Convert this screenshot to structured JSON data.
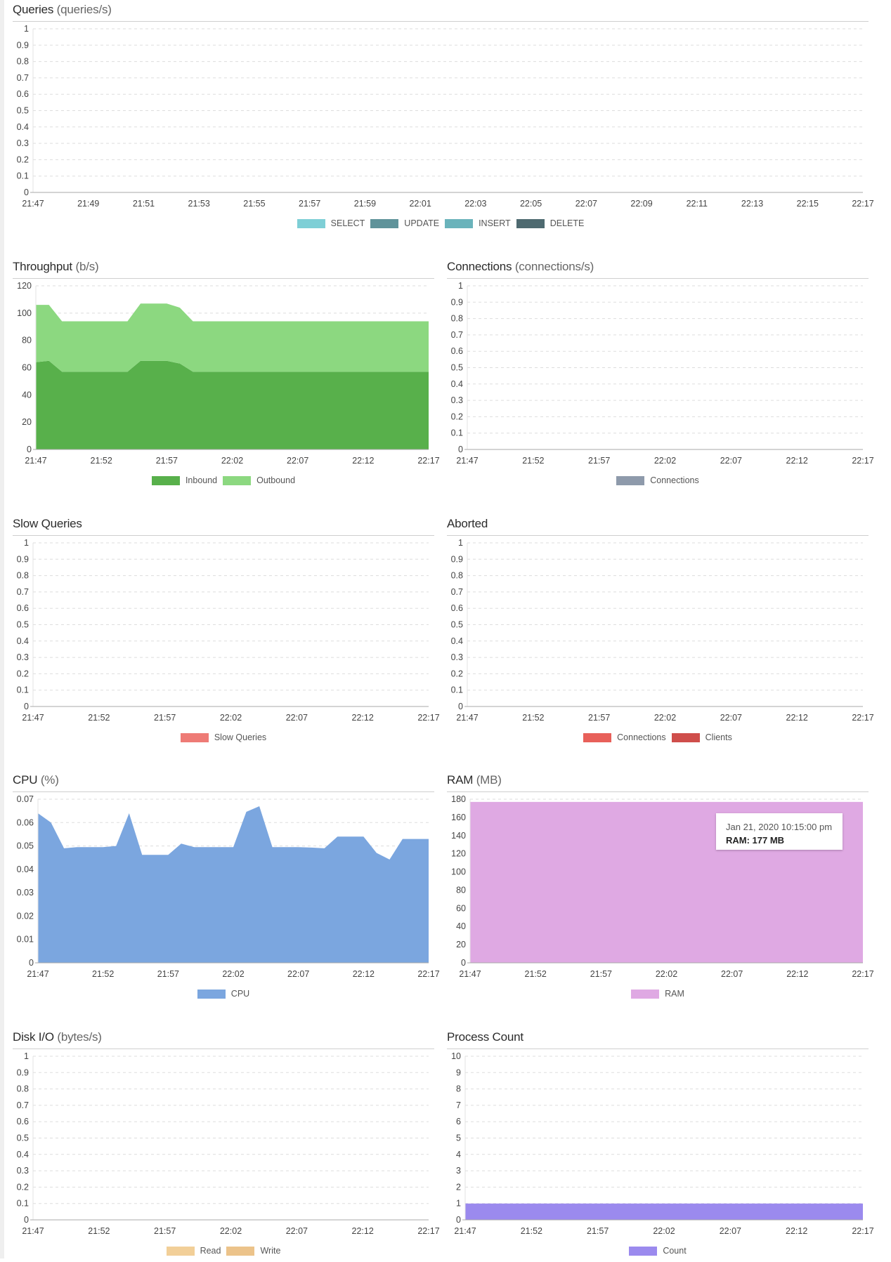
{
  "chart_data": [
    {
      "type": "area",
      "title": "Queries",
      "unit": "(queries/s)",
      "ylim": [
        0,
        1
      ],
      "yticks": [
        "0",
        "0.1",
        "0.2",
        "0.3",
        "0.4",
        "0.5",
        "0.6",
        "0.7",
        "0.8",
        "0.9",
        "1"
      ],
      "xticks": [
        "21:47",
        "21:49",
        "21:51",
        "21:53",
        "21:55",
        "21:57",
        "21:59",
        "22:01",
        "22:03",
        "22:05",
        "22:07",
        "22:09",
        "22:11",
        "22:13",
        "22:15",
        "22:17"
      ],
      "grid": true,
      "legend": "bottom",
      "series": [
        {
          "name": "SELECT",
          "color": "#7ecfd6",
          "values": []
        },
        {
          "name": "UPDATE",
          "color": "#5f939a",
          "values": []
        },
        {
          "name": "INSERT",
          "color": "#6ab3bb",
          "values": []
        },
        {
          "name": "DELETE",
          "color": "#4e6a70",
          "values": []
        }
      ]
    },
    {
      "type": "area",
      "stacked": true,
      "title": "Throughput",
      "unit": "(b/s)",
      "ylim": [
        0,
        120
      ],
      "yticks": [
        "0",
        "20",
        "40",
        "60",
        "80",
        "100",
        "120"
      ],
      "xticks": [
        "21:47",
        "21:52",
        "21:57",
        "22:02",
        "22:07",
        "22:12",
        "22:17"
      ],
      "grid": true,
      "legend": "bottom",
      "x": [
        "21:47",
        "21:48",
        "21:49",
        "21:50",
        "21:51",
        "21:52",
        "21:53",
        "21:54",
        "21:55",
        "21:56",
        "21:57",
        "21:58",
        "21:59",
        "22:00",
        "22:01",
        "22:02",
        "22:03",
        "22:04",
        "22:05",
        "22:06",
        "22:07",
        "22:08",
        "22:09",
        "22:10",
        "22:11",
        "22:12",
        "22:13",
        "22:14",
        "22:15",
        "22:16",
        "22:17"
      ],
      "series": [
        {
          "name": "Inbound",
          "color": "#58b04b",
          "values": [
            64,
            65,
            57,
            57,
            57,
            57,
            57,
            57,
            65,
            65,
            65,
            63,
            57,
            57,
            57,
            57,
            57,
            57,
            57,
            57,
            57,
            57,
            57,
            57,
            57,
            57,
            57,
            57,
            57,
            57,
            57
          ]
        },
        {
          "name": "Outbound",
          "color": "#8cd880",
          "values": [
            42,
            41,
            37,
            37,
            37,
            37,
            37,
            37,
            42,
            42,
            42,
            41,
            37,
            37,
            37,
            37,
            37,
            37,
            37,
            37,
            37,
            37,
            37,
            37,
            37,
            37,
            37,
            37,
            37,
            37,
            37
          ]
        }
      ]
    },
    {
      "type": "area",
      "title": "Connections",
      "unit": "(connections/s)",
      "ylim": [
        0,
        1
      ],
      "yticks": [
        "0",
        "0.1",
        "0.2",
        "0.3",
        "0.4",
        "0.5",
        "0.6",
        "0.7",
        "0.8",
        "0.9",
        "1"
      ],
      "xticks": [
        "21:47",
        "21:52",
        "21:57",
        "22:02",
        "22:07",
        "22:12",
        "22:17"
      ],
      "grid": true,
      "legend": "bottom",
      "series": [
        {
          "name": "Connections",
          "color": "#8e9aab",
          "values": []
        }
      ]
    },
    {
      "type": "area",
      "title": "Slow Queries",
      "unit": "",
      "ylim": [
        0,
        1
      ],
      "yticks": [
        "0",
        "0.1",
        "0.2",
        "0.3",
        "0.4",
        "0.5",
        "0.6",
        "0.7",
        "0.8",
        "0.9",
        "1"
      ],
      "xticks": [
        "21:47",
        "21:52",
        "21:57",
        "22:02",
        "22:07",
        "22:12",
        "22:17"
      ],
      "grid": true,
      "legend": "bottom",
      "series": [
        {
          "name": "Slow Queries",
          "color": "#ee7b76",
          "values": []
        }
      ]
    },
    {
      "type": "area",
      "title": "Aborted",
      "unit": "",
      "ylim": [
        0,
        1
      ],
      "yticks": [
        "0",
        "0.1",
        "0.2",
        "0.3",
        "0.4",
        "0.5",
        "0.6",
        "0.7",
        "0.8",
        "0.9",
        "1"
      ],
      "xticks": [
        "21:47",
        "21:52",
        "21:57",
        "22:02",
        "22:07",
        "22:12",
        "22:17"
      ],
      "grid": true,
      "legend": "bottom",
      "series": [
        {
          "name": "Connections",
          "color": "#e8605a",
          "values": []
        },
        {
          "name": "Clients",
          "color": "#cf4e4b",
          "values": []
        }
      ]
    },
    {
      "type": "area",
      "title": "CPU",
      "unit": "(%)",
      "ylim": [
        0,
        0.07
      ],
      "yticks": [
        "0",
        "0.01",
        "0.02",
        "0.03",
        "0.04",
        "0.05",
        "0.06",
        "0.07"
      ],
      "xticks": [
        "21:47",
        "21:52",
        "21:57",
        "22:02",
        "22:07",
        "22:12",
        "22:17"
      ],
      "grid": true,
      "legend": "bottom",
      "x": [
        "21:47",
        "21:48",
        "21:49",
        "21:50",
        "21:51",
        "21:52",
        "21:53",
        "21:54",
        "21:55",
        "21:56",
        "21:57",
        "21:58",
        "21:59",
        "22:00",
        "22:01",
        "22:02",
        "22:03",
        "22:04",
        "22:05",
        "22:06",
        "22:07",
        "22:08",
        "22:09",
        "22:10",
        "22:11",
        "22:12",
        "22:13",
        "22:14",
        "22:15",
        "22:16",
        "22:17"
      ],
      "series": [
        {
          "name": "CPU",
          "color": "#7ba6df",
          "values": [
            0.064,
            0.06,
            0.049,
            0.0495,
            0.0495,
            0.0495,
            0.05,
            0.064,
            0.0462,
            0.0462,
            0.0462,
            0.051,
            0.0495,
            0.0495,
            0.0495,
            0.0495,
            0.0646,
            0.067,
            0.0495,
            0.0495,
            0.0495,
            0.0493,
            0.049,
            0.054,
            0.054,
            0.054,
            0.047,
            0.0442,
            0.053,
            0.053,
            0.053
          ]
        }
      ]
    },
    {
      "type": "area",
      "title": "RAM",
      "unit": "(MB)",
      "ylim": [
        0,
        180
      ],
      "yticks": [
        "0",
        "20",
        "40",
        "60",
        "80",
        "100",
        "120",
        "140",
        "160",
        "180"
      ],
      "xticks": [
        "21:47",
        "21:52",
        "21:57",
        "22:02",
        "22:07",
        "22:12",
        "22:17"
      ],
      "grid": true,
      "legend": "bottom",
      "x": [
        "21:47",
        "22:17"
      ],
      "series": [
        {
          "name": "RAM",
          "color": "#dfa9e3",
          "values": [
            177,
            177
          ]
        }
      ],
      "tooltip": {
        "time": "Jan 21, 2020 10:15:00 pm",
        "value": "RAM: 177 MB"
      }
    },
    {
      "type": "area",
      "title": "Disk I/O",
      "unit": "(bytes/s)",
      "ylim": [
        0,
        1
      ],
      "yticks": [
        "0",
        "0.1",
        "0.2",
        "0.3",
        "0.4",
        "0.5",
        "0.6",
        "0.7",
        "0.8",
        "0.9",
        "1"
      ],
      "xticks": [
        "21:47",
        "21:52",
        "21:57",
        "22:02",
        "22:07",
        "22:12",
        "22:17"
      ],
      "grid": true,
      "legend": "bottom",
      "series": [
        {
          "name": "Read",
          "color": "#f2cf98",
          "values": []
        },
        {
          "name": "Write",
          "color": "#ecc38a",
          "values": []
        }
      ]
    },
    {
      "type": "area",
      "title": "Process Count",
      "unit": "",
      "ylim": [
        0,
        10
      ],
      "yticks": [
        "0",
        "1",
        "2",
        "3",
        "4",
        "5",
        "6",
        "7",
        "8",
        "9",
        "10"
      ],
      "xticks": [
        "21:47",
        "21:52",
        "21:57",
        "22:02",
        "22:07",
        "22:12",
        "22:17"
      ],
      "grid": true,
      "legend": "bottom",
      "x": [
        "21:47",
        "22:17"
      ],
      "series": [
        {
          "name": "Count",
          "color": "#9b8aee",
          "values": [
            1,
            1
          ]
        }
      ]
    }
  ]
}
